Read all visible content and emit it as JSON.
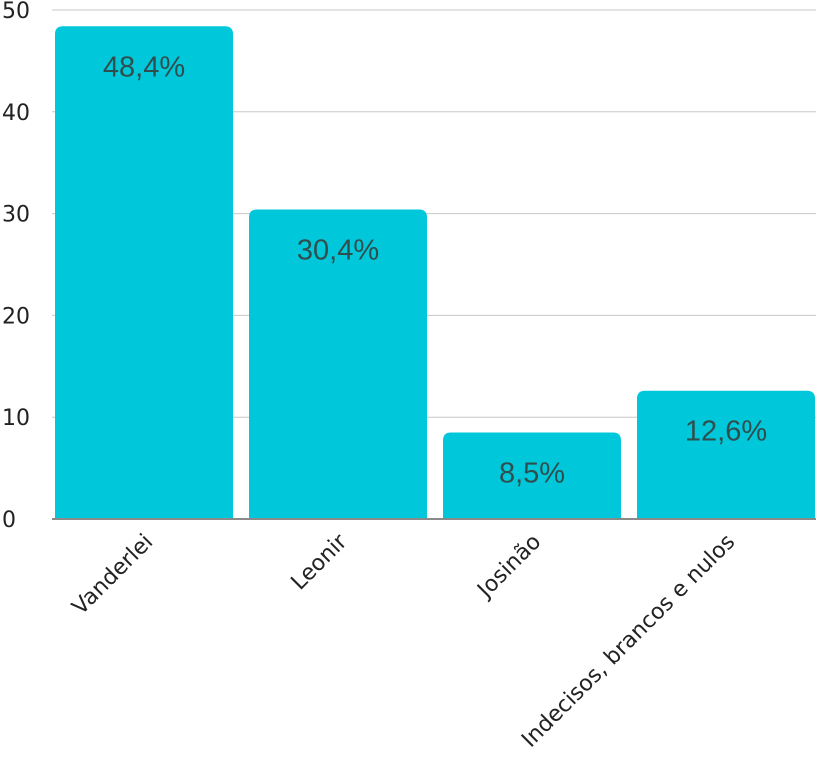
{
  "chart_data": {
    "type": "bar",
    "categories": [
      "Vanderlei",
      "Leonir",
      "Josinão",
      "Indecisos, brancos e nulos"
    ],
    "values": [
      48.4,
      30.4,
      8.5,
      12.6
    ],
    "data_labels": [
      "48,4%",
      "30,4%",
      "8,5%",
      "12,6%"
    ],
    "title": "",
    "xlabel": "",
    "ylabel": "",
    "ylim": [
      0,
      50
    ],
    "yticks": [
      0,
      10,
      20,
      30,
      40,
      50
    ],
    "ytick_labels": [
      "0",
      "10",
      "20",
      "30",
      "40",
      "50"
    ],
    "grid": true,
    "legend": "none",
    "bar_color": "#00c8da",
    "grid_color": "#c8c8c8",
    "axis_color": "#8a8a8a",
    "text_color": "#222222",
    "label_color": "#2f4f4f"
  }
}
